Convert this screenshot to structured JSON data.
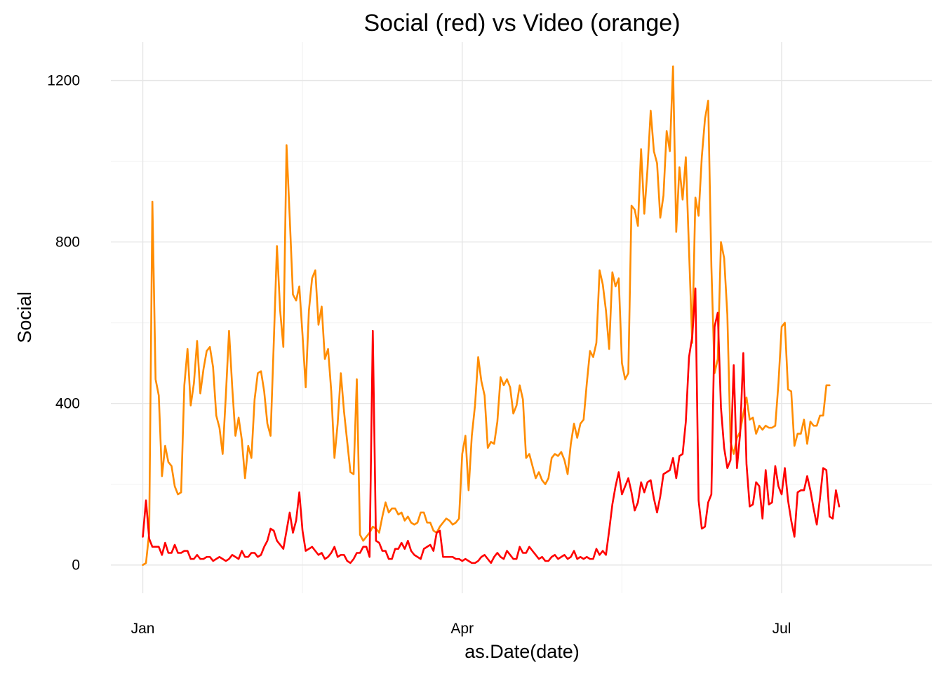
{
  "chart_data": {
    "type": "line",
    "title": "Social (red) vs Video (orange)",
    "xlabel": "as.Date(date)",
    "ylabel": "Social",
    "ylim": [
      -70,
      1295
    ],
    "yticks": [
      0,
      400,
      800,
      1200
    ],
    "ytick_labels": [
      "0",
      "400",
      "800",
      "1200"
    ],
    "x_day_range": [
      -10,
      247
    ],
    "xticks": [
      {
        "day": 0,
        "label": "Jan"
      },
      {
        "day": 100,
        "label": "Apr"
      },
      {
        "day": 200,
        "label": "Jul"
      }
    ],
    "x_minor_ticks": [
      50,
      150
    ],
    "grid": true,
    "series": [
      {
        "name": "Video",
        "color": "#ff8c00",
        "start_day": 0,
        "values": [
          0,
          5,
          80,
          900,
          460,
          420,
          220,
          295,
          255,
          245,
          195,
          175,
          180,
          445,
          535,
          395,
          450,
          555,
          425,
          485,
          530,
          540,
          490,
          370,
          340,
          275,
          420,
          580,
          440,
          320,
          365,
          310,
          215,
          295,
          265,
          410,
          475,
          480,
          430,
          350,
          320,
          550,
          790,
          630,
          540,
          1040,
          860,
          670,
          655,
          690,
          570,
          440,
          630,
          710,
          730,
          595,
          640,
          510,
          535,
          430,
          265,
          350,
          475,
          380,
          305,
          230,
          225,
          460,
          75,
          60,
          70,
          80,
          95,
          90,
          80,
          120,
          155,
          130,
          140,
          140,
          125,
          130,
          110,
          120,
          105,
          100,
          105,
          130,
          130,
          105,
          105,
          85,
          80,
          95,
          105,
          115,
          110,
          100,
          105,
          115,
          275,
          320,
          185,
          320,
          395,
          515,
          455,
          420,
          290,
          305,
          300,
          355,
          465,
          445,
          460,
          440,
          375,
          395,
          445,
          410,
          265,
          275,
          245,
          215,
          230,
          210,
          200,
          215,
          265,
          275,
          270,
          280,
          260,
          225,
          300,
          350,
          315,
          350,
          360,
          450,
          530,
          515,
          550,
          730,
          695,
          630,
          535,
          725,
          690,
          710,
          500,
          460,
          475,
          890,
          880,
          840,
          1030,
          870,
          980,
          1125,
          1025,
          995,
          860,
          915,
          1075,
          1025,
          1235,
          825,
          985,
          905,
          1010,
          780,
          550,
          910,
          865,
          1010,
          1105,
          1150,
          740,
          475,
          510,
          800,
          760,
          620,
          305,
          275,
          315,
          330,
          375,
          415,
          360,
          365,
          325,
          345,
          335,
          345,
          340,
          340,
          345,
          450,
          590,
          600,
          435,
          430,
          295,
          325,
          325,
          360,
          300,
          355,
          345,
          345,
          370,
          370,
          445,
          445
        ]
      },
      {
        "name": "Social",
        "color": "#ff0000",
        "start_day": 0,
        "values": [
          70,
          160,
          65,
          45,
          45,
          45,
          25,
          55,
          30,
          30,
          50,
          30,
          30,
          35,
          35,
          15,
          15,
          25,
          15,
          15,
          20,
          20,
          10,
          15,
          20,
          15,
          10,
          15,
          25,
          20,
          15,
          35,
          20,
          20,
          30,
          30,
          20,
          25,
          45,
          60,
          90,
          85,
          60,
          50,
          40,
          85,
          130,
          80,
          110,
          180,
          85,
          35,
          40,
          45,
          35,
          25,
          30,
          15,
          20,
          30,
          45,
          20,
          25,
          25,
          10,
          5,
          15,
          30,
          30,
          45,
          45,
          20,
          580,
          60,
          55,
          35,
          35,
          15,
          15,
          40,
          40,
          55,
          40,
          60,
          35,
          25,
          20,
          15,
          40,
          45,
          50,
          35,
          80,
          85,
          20,
          20,
          20,
          20,
          15,
          15,
          10,
          15,
          10,
          5,
          5,
          10,
          20,
          25,
          15,
          5,
          20,
          30,
          20,
          15,
          35,
          25,
          15,
          15,
          45,
          30,
          30,
          45,
          35,
          25,
          15,
          20,
          10,
          10,
          20,
          25,
          15,
          20,
          25,
          15,
          20,
          35,
          15,
          20,
          15,
          20,
          15,
          15,
          40,
          25,
          35,
          25,
          85,
          150,
          195,
          230,
          175,
          195,
          215,
          180,
          135,
          155,
          205,
          180,
          205,
          210,
          165,
          130,
          170,
          225,
          230,
          235,
          265,
          215,
          270,
          275,
          355,
          515,
          565,
          685,
          160,
          90,
          95,
          155,
          175,
          590,
          625,
          390,
          290,
          240,
          260,
          495,
          240,
          325,
          525,
          250,
          145,
          150,
          205,
          195,
          115,
          235,
          150,
          155,
          245,
          195,
          175,
          240,
          160,
          110,
          70,
          180,
          185,
          185,
          220,
          185,
          140,
          100,
          165,
          240,
          235,
          120,
          115,
          185,
          145
        ]
      }
    ]
  }
}
